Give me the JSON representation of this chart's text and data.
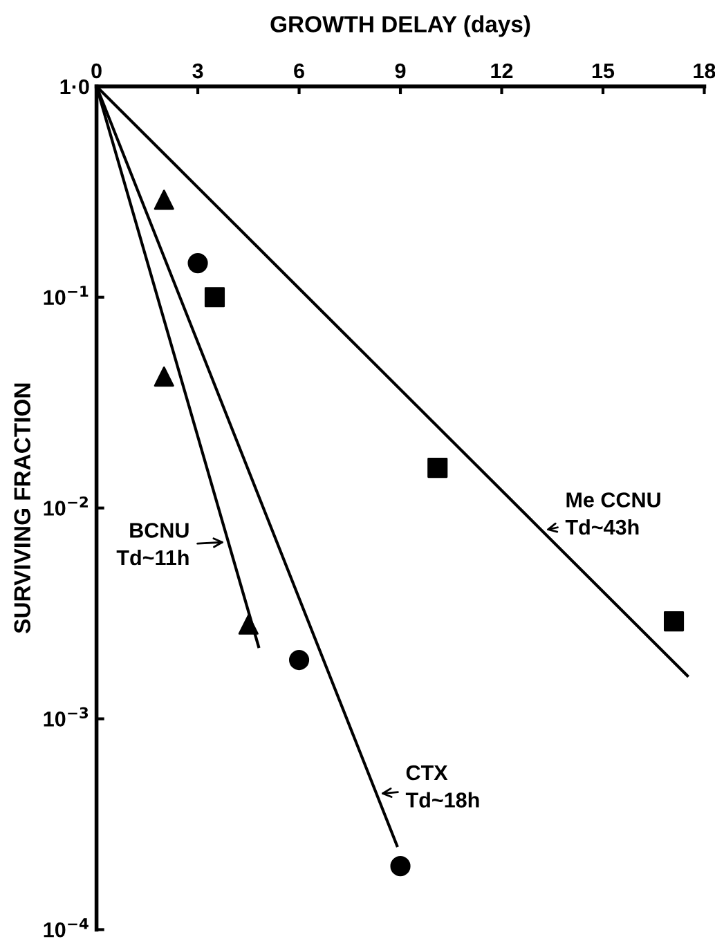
{
  "chart_data": {
    "type": "scatter",
    "xlabel": "GROWTH DELAY (days)",
    "ylabel": "SURVIVING FRACTION",
    "xlim": [
      0,
      18
    ],
    "xticks": [
      0,
      3,
      6,
      9,
      12,
      15,
      18
    ],
    "ylim": [
      0.0001,
      1
    ],
    "yticks": [
      {
        "value": 1,
        "label": "1·0"
      },
      {
        "value": 0.1,
        "label": "10$^{−1}$"
      },
      {
        "value": 0.01,
        "label": "10$^{−2}$"
      },
      {
        "value": 0.001,
        "label": "10$^{−3}$"
      },
      {
        "value": 0.0001,
        "label": "10$^{−4}$"
      }
    ],
    "log": "y",
    "grid": false,
    "legend": false,
    "series": [
      {
        "marker": "triangle",
        "color": "#000000",
        "x": [
          2.0,
          2.0,
          4.5
        ],
        "values": [
          0.29,
          0.042,
          0.0028
        ]
      },
      {
        "marker": "circle",
        "color": "#000000",
        "x": [
          3.0,
          6.0,
          9.0
        ],
        "values": [
          0.145,
          0.0019,
          0.0002
        ]
      },
      {
        "marker": "square",
        "color": "#000000",
        "x": [
          3.5,
          10.1,
          17.1
        ],
        "values": [
          0.1,
          0.0155,
          0.0029
        ]
      },
      {
        "type": "line",
        "marker": "none",
        "line_style": "solid",
        "color": "#000000",
        "x": [
          0,
          4.8
        ],
        "values": [
          1,
          0.0022
        ]
      },
      {
        "type": "line",
        "marker": "none",
        "line_style": "solid",
        "color": "#000000",
        "x": [
          0,
          8.9
        ],
        "values": [
          1,
          0.00025
        ]
      },
      {
        "type": "line",
        "marker": "none",
        "line_style": "solid",
        "color": "#000000",
        "x": [
          0,
          17.5
        ],
        "values": [
          1,
          0.0016
        ]
      }
    ],
    "annotations": [
      {
        "text": "BCNU\nTd~11h",
        "x": 3.9,
        "y": 0.0069
      },
      {
        "text": "CTX\nTd~18h",
        "x": 8.3,
        "y": 0.00044
      },
      {
        "text": "Me CCNU\nTd~43h",
        "x": 13.2,
        "y": 0.0078
      }
    ]
  }
}
